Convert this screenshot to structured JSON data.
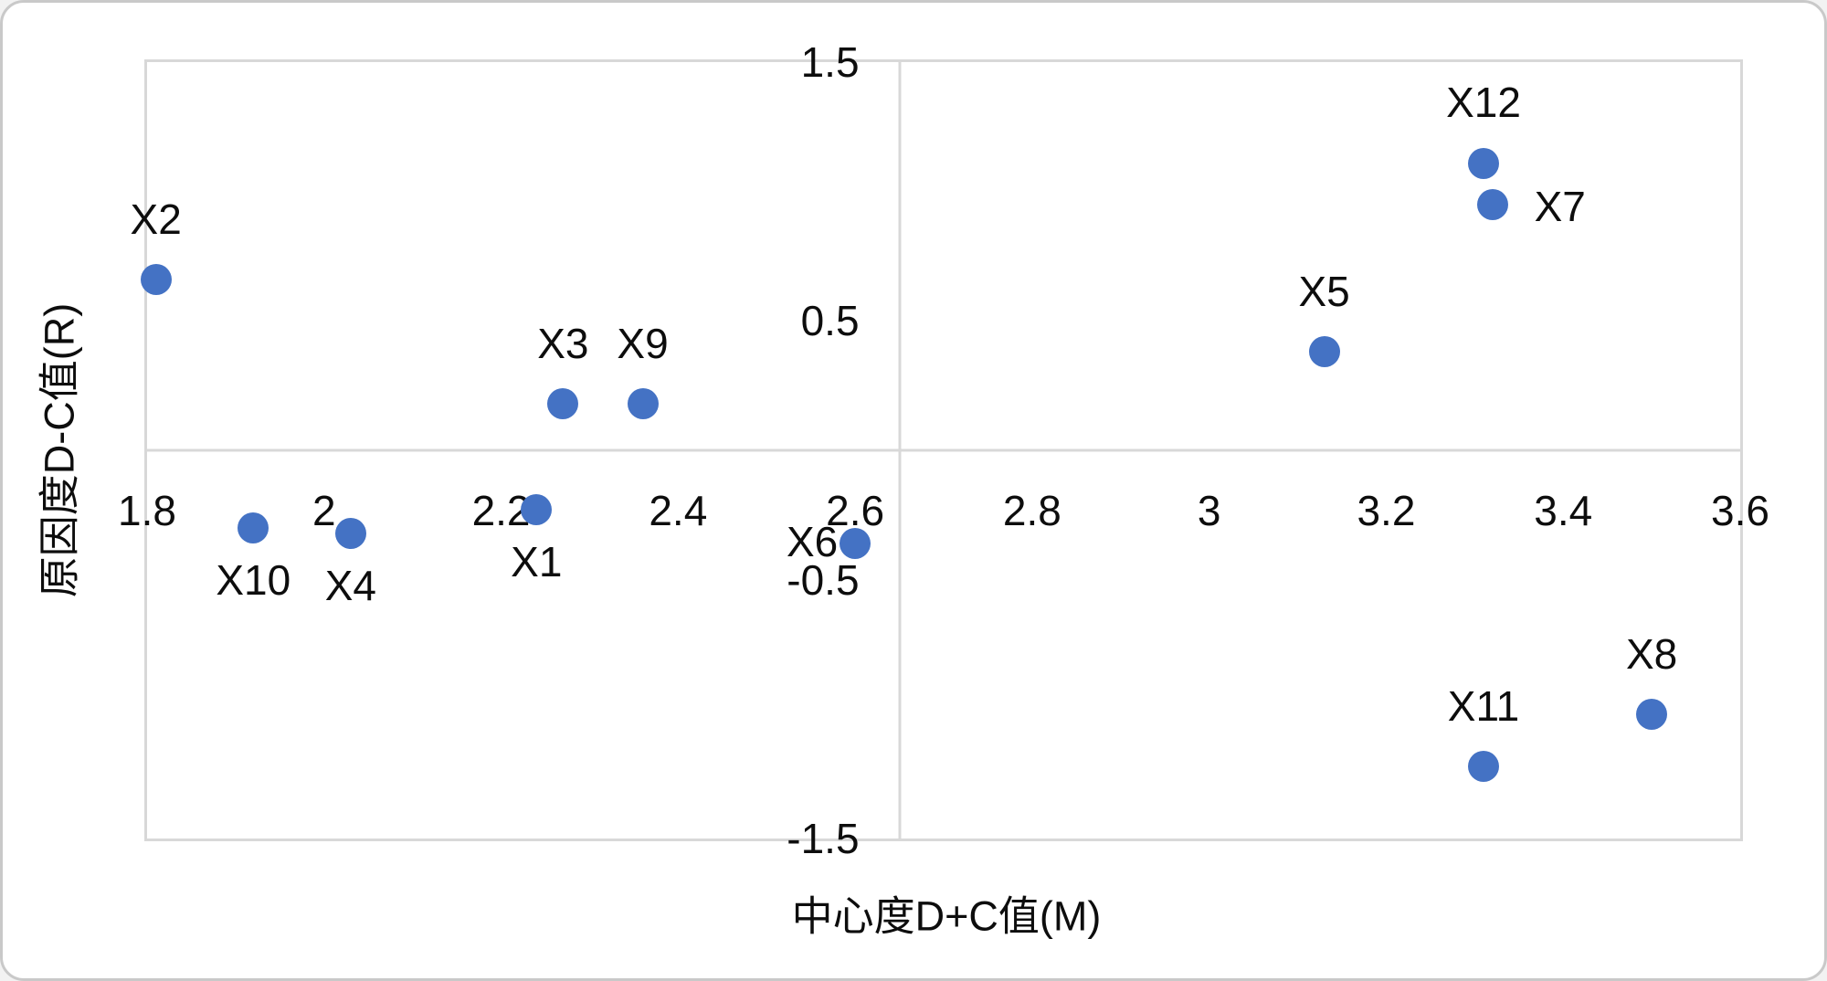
{
  "figure": {
    "background": "#ffffff",
    "outer_border_color": "#c9c9c9",
    "plot_border_color": "#d8d8d8",
    "text_color": "#0d0d0d"
  },
  "chart_data": {
    "type": "scatter",
    "title": "",
    "xlabel": "中心度D+C值(M)",
    "ylabel": "原因度D-C值(R)",
    "xlim": [
      1.8,
      3.6
    ],
    "ylim": [
      -1.5,
      1.5
    ],
    "grid": false,
    "legend": "none",
    "x_ticks": [
      1.8,
      2,
      2.2,
      2.4,
      2.6,
      2.8,
      3,
      3.2,
      3.4,
      3.6
    ],
    "x_tick_labels": [
      "1.8",
      "2",
      "2.2",
      "2.4",
      "2.6",
      "2.8",
      "3",
      "3.2",
      "3.4",
      "3.6"
    ],
    "y_ticks": [
      1.5,
      0.5,
      -0.5,
      -1.5
    ],
    "y_tick_labels": [
      "1.5",
      "0.5",
      "-0.5",
      "-1.5"
    ],
    "quadrant_divider_x": 2.65,
    "quadrant_divider_y": 0,
    "marker_color": "#4472c4",
    "points": [
      {
        "label": "X1",
        "x": 2.24,
        "y": -0.23,
        "label_pos": "below"
      },
      {
        "label": "X2",
        "x": 1.81,
        "y": 0.66,
        "label_pos": "above"
      },
      {
        "label": "X3",
        "x": 2.27,
        "y": 0.18,
        "label_pos": "above"
      },
      {
        "label": "X4",
        "x": 2.03,
        "y": -0.32,
        "label_pos": "below"
      },
      {
        "label": "X5",
        "x": 3.13,
        "y": 0.38,
        "label_pos": "above"
      },
      {
        "label": "X6",
        "x": 2.6,
        "y": -0.36,
        "label_pos": "left"
      },
      {
        "label": "X7",
        "x": 3.32,
        "y": 0.95,
        "label_pos": "right"
      },
      {
        "label": "X8",
        "x": 3.5,
        "y": -1.02,
        "label_pos": "above"
      },
      {
        "label": "X9",
        "x": 2.36,
        "y": 0.18,
        "label_pos": "above"
      },
      {
        "label": "X10",
        "x": 1.92,
        "y": -0.3,
        "label_pos": "below"
      },
      {
        "label": "X11",
        "x": 3.31,
        "y": -1.22,
        "label_pos": "above"
      },
      {
        "label": "X12",
        "x": 3.31,
        "y": 1.11,
        "label_pos": "above"
      }
    ]
  }
}
